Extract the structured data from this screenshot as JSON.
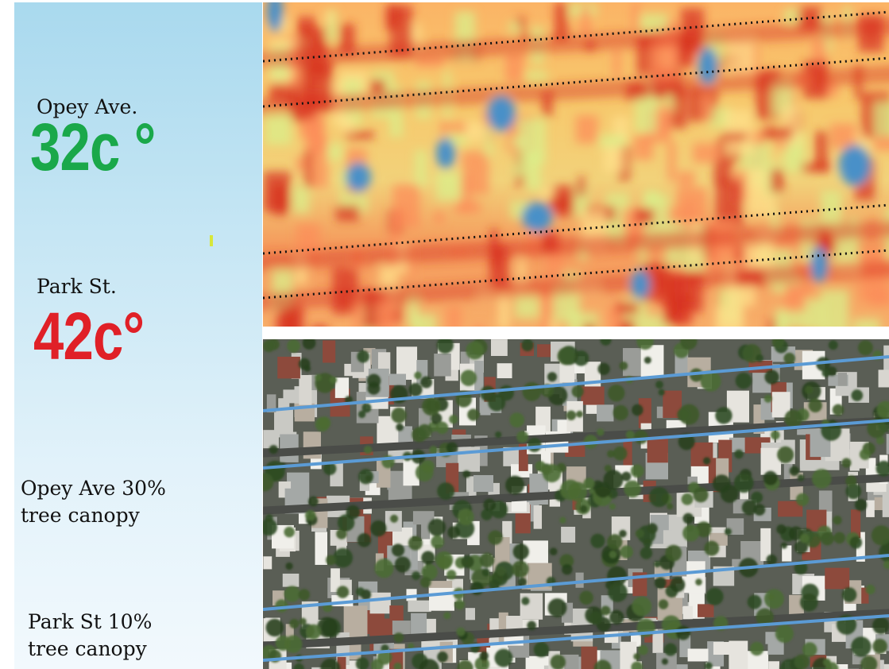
{
  "opey": {
    "label": "Opey Ave.",
    "temperature": "32c °",
    "temperature_color": "#1aa84a",
    "canopy_line1": "Opey Ave 30%",
    "canopy_line2": "tree canopy",
    "canopy_percent": 30
  },
  "park": {
    "label": "Park St.",
    "temperature": "42c°",
    "temperature_color": "#e02027",
    "canopy_line1": "Park St 10%",
    "canopy_line2": "tree canopy",
    "canopy_percent": 10
  },
  "images": {
    "heat_map": "thermal-heat-map",
    "aerial": "aerial-satellite-photo"
  },
  "colors": {
    "heat_hot": "#d7301f",
    "heat_warm": "#fc8d59",
    "heat_mild": "#fee08b",
    "heat_cool": "#d9ef8b",
    "heat_cold": "#4a90c8",
    "street_line_aerial": "#5b9bd5",
    "street_line_heat": "#111111"
  }
}
